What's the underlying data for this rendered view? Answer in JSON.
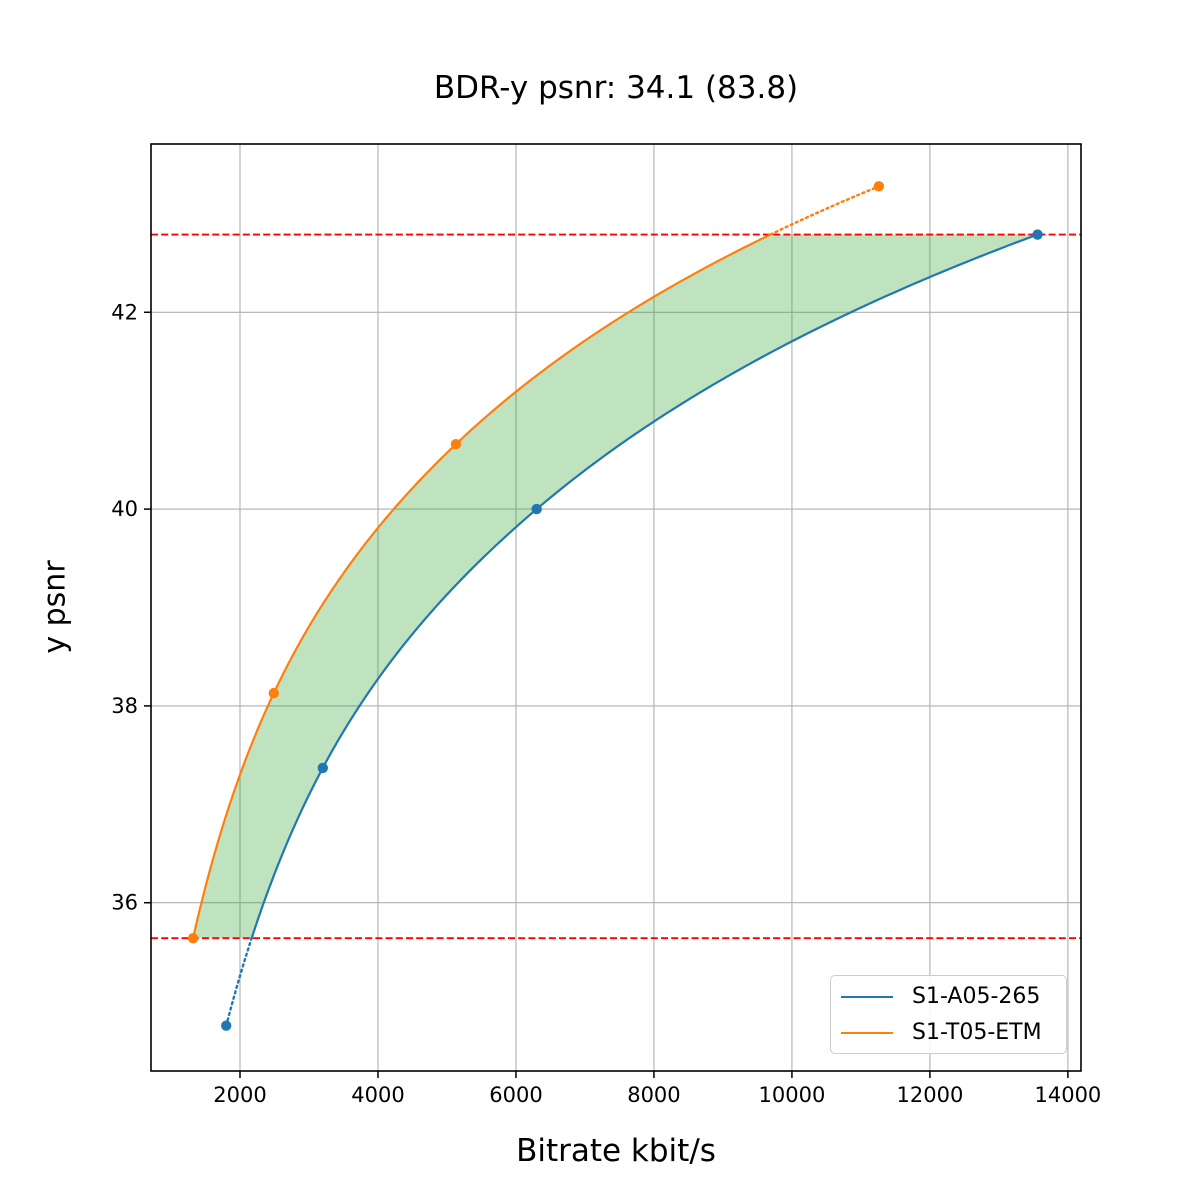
{
  "figure": {
    "background": "#ffffff"
  },
  "chart_data": {
    "type": "line",
    "title": "BDR-y psnr: 34.1 (83.8)",
    "xlabel": "Bitrate kbit/s",
    "ylabel": "y psnr",
    "xlim": [
      710,
      14190
    ],
    "ylim": [
      34.29,
      43.71
    ],
    "xticks": [
      2000,
      4000,
      6000,
      8000,
      10000,
      12000,
      14000
    ],
    "yticks": [
      36,
      38,
      40,
      42
    ],
    "grid": true,
    "grid_color": "#b0b0b0",
    "spine_color": "#000000",
    "series": [
      {
        "name": "S1-A05-265",
        "color": "#1f77b4",
        "x": [
          1800,
          3200,
          6300,
          13560
        ],
        "y": [
          34.75,
          37.37,
          40.0,
          42.79
        ]
      },
      {
        "name": "S1-T05-ETM",
        "color": "#ff7f0e",
        "x": [
          1320,
          2490,
          5130,
          11260
        ],
        "y": [
          35.64,
          38.13,
          40.66,
          43.28
        ]
      }
    ],
    "overlap_band": {
      "lo": 35.64,
      "hi": 42.79,
      "fill": "#2ca02c",
      "alpha": 0.3
    },
    "hlines": [
      {
        "y": 42.79,
        "color": "#ff0000",
        "style": "dashed"
      },
      {
        "y": 35.64,
        "color": "#ff0000",
        "style": "dashed"
      }
    ],
    "legend": {
      "position": "lower right"
    }
  }
}
